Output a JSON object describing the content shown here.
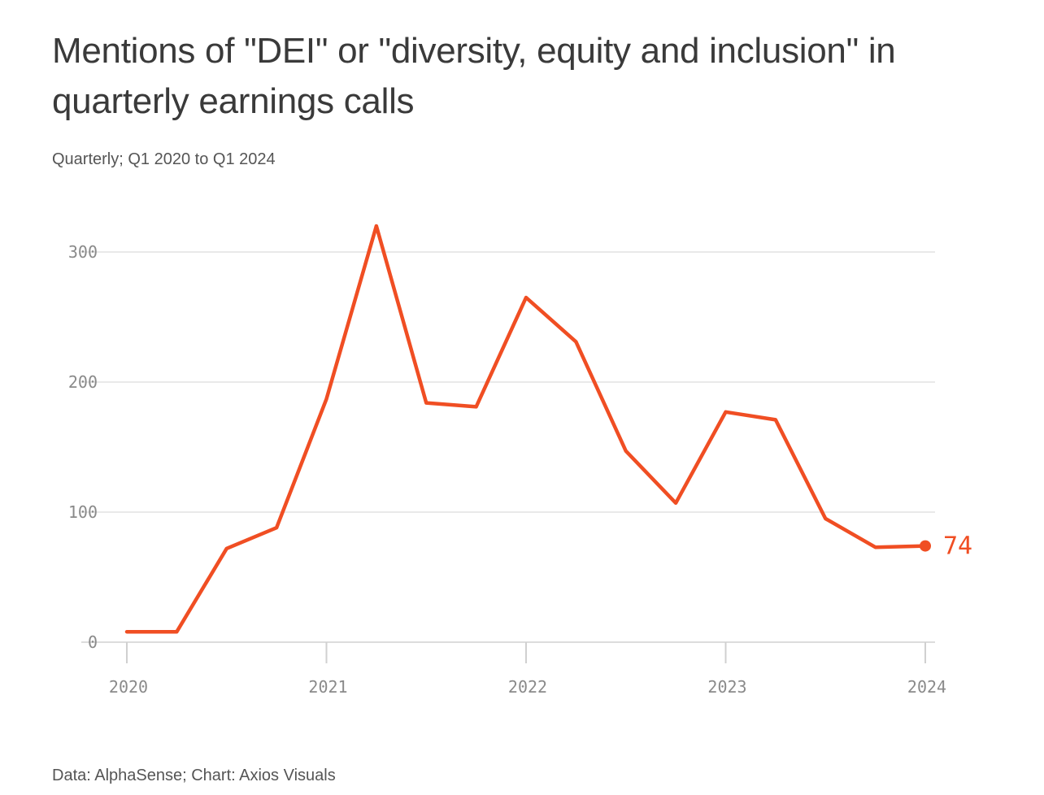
{
  "title": "Mentions of \"DEI\" or \"diversity, equity and inclusion\" in quarterly earnings calls",
  "subtitle": "Quarterly; Q1 2020 to Q1 2024",
  "source": "Data: AlphaSense; Chart: Axios Visuals",
  "colors": {
    "line": "#f04e23",
    "grid": "#e9e9e9",
    "axis_text": "#8a8a8a"
  },
  "chart_data": {
    "type": "line",
    "title": "Mentions of \"DEI\" or \"diversity, equity and inclusion\" in quarterly earnings calls",
    "subtitle": "Quarterly; Q1 2020 to Q1 2024",
    "xlabel": "",
    "ylabel": "",
    "x": [
      "Q1 2020",
      "Q2 2020",
      "Q3 2020",
      "Q4 2020",
      "Q1 2021",
      "Q2 2021",
      "Q3 2021",
      "Q4 2021",
      "Q1 2022",
      "Q2 2022",
      "Q3 2022",
      "Q4 2022",
      "Q1 2023",
      "Q2 2023",
      "Q3 2023",
      "Q4 2023",
      "Q1 2024"
    ],
    "x_numeric": [
      2020,
      2020.25,
      2020.5,
      2020.75,
      2021,
      2021.25,
      2021.5,
      2021.75,
      2022,
      2022.25,
      2022.5,
      2022.75,
      2023,
      2023.25,
      2023.5,
      2023.75,
      2024
    ],
    "series": [
      {
        "values": [
          8,
          8,
          72,
          88,
          187,
          320,
          184,
          181,
          265,
          231,
          147,
          107,
          177,
          171,
          95,
          73,
          74
        ]
      }
    ],
    "ylim": [
      0,
      320
    ],
    "xlim": [
      2020,
      2024
    ],
    "y_ticks": [
      "0",
      "100",
      "200",
      "300"
    ],
    "y_tick_values": [
      0,
      100,
      200,
      300
    ],
    "x_ticks": [
      "2020",
      "2021",
      "2022",
      "2023",
      "2024"
    ],
    "x_tick_values": [
      2020,
      2021,
      2022,
      2023,
      2024
    ],
    "end_label": "74",
    "grid": true,
    "legend": "none"
  }
}
